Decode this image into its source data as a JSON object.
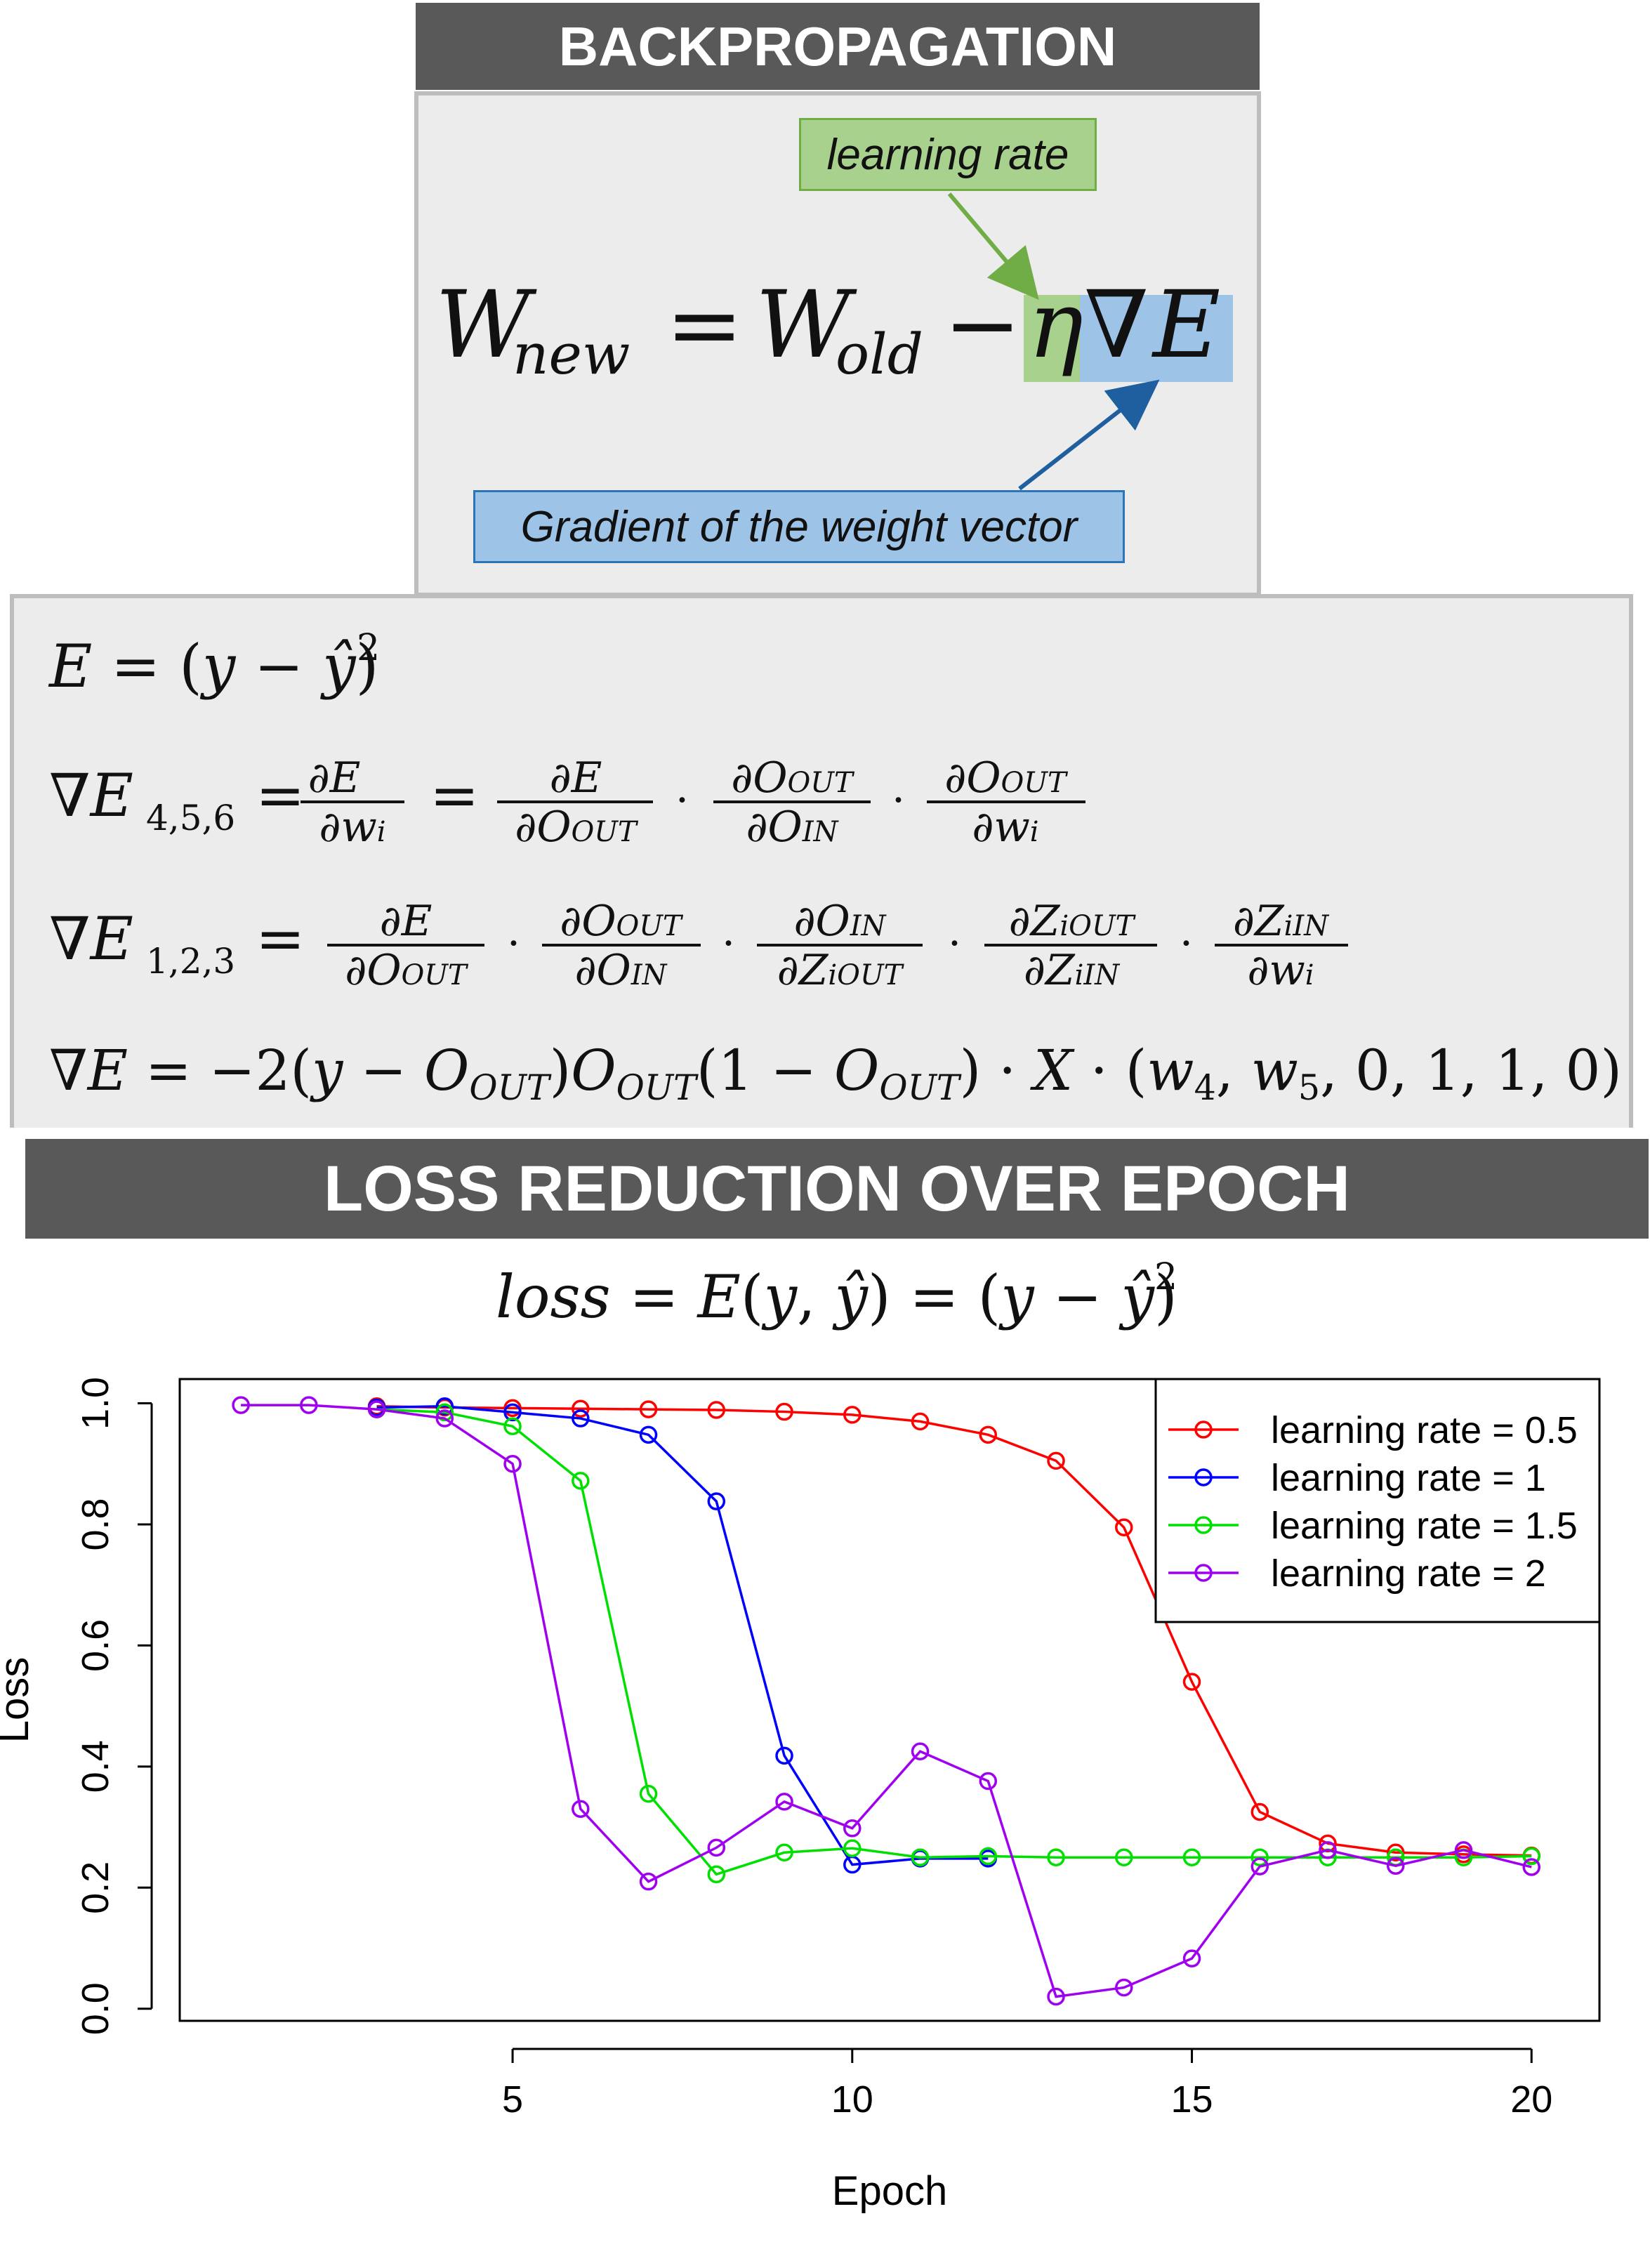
{
  "top_banner": {
    "title": "BACKPROPAGATION"
  },
  "update_rule": {
    "callout_learning_rate": "learning rate",
    "callout_gradient": "Gradient of the weight vector"
  },
  "bottom_banner": {
    "title": "LOSS REDUCTION OVER EPOCH"
  },
  "colors": {
    "banner": "#595959",
    "panel": "#ececec",
    "lr_green": "#a9d18e",
    "grad_blue": "#9dc3e6"
  },
  "chart_data": {
    "type": "line",
    "xlabel": "Epoch",
    "ylabel": "Loss",
    "xlim": [
      0.1,
      21
    ],
    "ylim": [
      -0.02,
      1.04
    ],
    "xticks": [
      5,
      10,
      15,
      20
    ],
    "yticks": [
      0.0,
      0.2,
      0.4,
      0.6,
      0.8,
      1.0
    ],
    "xtick_labels": [
      "5",
      "10",
      "15",
      "20"
    ],
    "ytick_labels": [
      "0.0",
      "0.2",
      "0.4",
      "0.6",
      "0.8",
      "1.0"
    ],
    "legend_position": "top-right",
    "grid": false,
    "x": [
      1,
      2,
      3,
      4,
      5,
      6,
      7,
      8,
      9,
      10,
      11,
      12,
      13,
      14,
      15,
      16,
      17,
      18,
      19,
      20
    ],
    "series": [
      {
        "name": "learning rate = 0.5",
        "color": "#ff0000",
        "values": [
          null,
          null,
          0.995,
          0.993,
          0.992,
          0.991,
          0.99,
          0.989,
          0.986,
          0.981,
          0.97,
          0.948,
          0.905,
          0.795,
          0.54,
          0.325,
          0.273,
          0.258,
          0.255,
          0.253
        ]
      },
      {
        "name": "learning rate = 1",
        "color": "#0000ff",
        "values": [
          null,
          null,
          0.993,
          0.995,
          0.985,
          0.975,
          0.948,
          0.838,
          0.418,
          0.238,
          0.248,
          0.248,
          null,
          null,
          null,
          null,
          null,
          null,
          null,
          null
        ]
      },
      {
        "name": "learning rate = 1.5",
        "color": "#00e000",
        "values": [
          null,
          null,
          0.99,
          0.985,
          0.962,
          0.872,
          0.355,
          0.222,
          0.258,
          0.265,
          0.25,
          0.252,
          0.25,
          0.25,
          0.25,
          0.25,
          0.25,
          0.25,
          0.25,
          0.252
        ]
      },
      {
        "name": "learning rate = 2",
        "color": "#a000f0",
        "values": [
          0.997,
          0.997,
          0.99,
          0.975,
          0.9,
          0.33,
          0.21,
          0.266,
          0.342,
          0.298,
          0.425,
          0.376,
          0.02,
          0.035,
          0.083,
          0.235,
          0.262,
          0.236,
          0.262,
          0.234
        ]
      }
    ]
  }
}
